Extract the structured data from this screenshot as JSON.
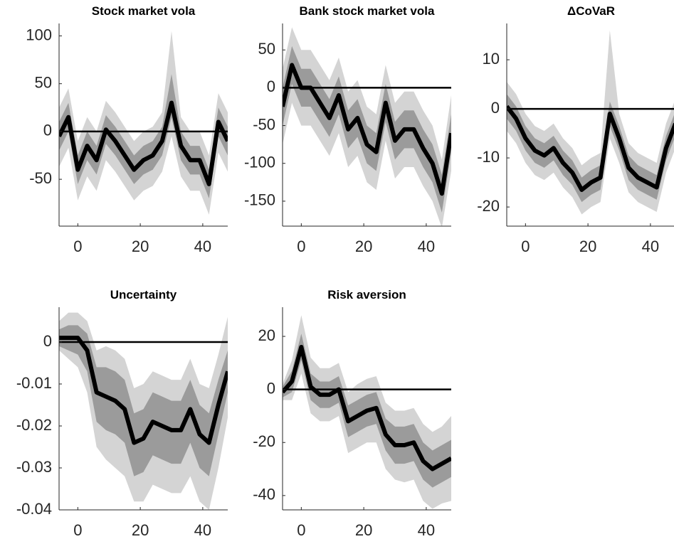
{
  "chart_data": [
    {
      "type": "line",
      "title": "Stock market vola",
      "x": [
        -6,
        -3,
        0,
        3,
        6,
        9,
        12,
        15,
        18,
        21,
        24,
        27,
        30,
        33,
        36,
        39,
        42,
        45,
        48
      ],
      "xlim": [
        -6,
        48
      ],
      "xticks": [
        0,
        20,
        40
      ],
      "ylim": [
        -99,
        113
      ],
      "yticks": [
        -50,
        0,
        50,
        100
      ],
      "hline": 0,
      "bands": [
        {
          "color": "#d4d4d4",
          "lower": [
            -37,
            -17,
            -72,
            -47,
            -62,
            -30,
            -42,
            -57,
            -72,
            -62,
            -57,
            -42,
            -5,
            -47,
            -62,
            -62,
            -87,
            -22,
            -42
          ],
          "upper": [
            25,
            45,
            -10,
            15,
            0,
            32,
            20,
            5,
            -10,
            0,
            5,
            20,
            105,
            15,
            0,
            0,
            -25,
            40,
            20
          ]
        },
        {
          "color": "#9b9b9b",
          "lower": [
            -20,
            0,
            -55,
            -30,
            -45,
            -13,
            -25,
            -40,
            -55,
            -45,
            -40,
            -25,
            15,
            -30,
            -45,
            -45,
            -70,
            -5,
            -25
          ],
          "upper": [
            10,
            30,
            -25,
            0,
            -15,
            17,
            5,
            -10,
            -25,
            -15,
            -10,
            5,
            60,
            0,
            -15,
            -15,
            -40,
            25,
            5
          ]
        }
      ],
      "series": [
        {
          "color": "#000000",
          "values": [
            -5,
            15,
            -40,
            -15,
            -30,
            2,
            -10,
            -25,
            -40,
            -30,
            -25,
            -10,
            30,
            -15,
            -30,
            -30,
            -55,
            10,
            -10
          ]
        }
      ]
    },
    {
      "type": "line",
      "title": "Bank stock market vola",
      "x": [
        -6,
        -3,
        0,
        3,
        6,
        9,
        12,
        15,
        18,
        21,
        24,
        27,
        30,
        33,
        36,
        39,
        42,
        45,
        48
      ],
      "xlim": [
        -6,
        48
      ],
      "xticks": [
        0,
        20,
        40
      ],
      "ylim": [
        -183,
        85
      ],
      "yticks": [
        -150,
        -100,
        -50,
        0,
        50
      ],
      "hline": 0,
      "bands": [
        {
          "color": "#d4d4d4",
          "lower": [
            -75,
            -20,
            -50,
            -50,
            -70,
            -90,
            -60,
            -105,
            -90,
            -125,
            -135,
            -70,
            -120,
            -105,
            -105,
            -130,
            -150,
            -185,
            -110
          ],
          "upper": [
            25,
            80,
            50,
            50,
            30,
            10,
            40,
            -5,
            10,
            -25,
            -35,
            30,
            -20,
            -5,
            -5,
            -30,
            -50,
            -95,
            -10
          ]
        },
        {
          "color": "#9b9b9b",
          "lower": [
            -50,
            5,
            -25,
            -25,
            -45,
            -65,
            -35,
            -80,
            -65,
            -100,
            -110,
            -45,
            -95,
            -80,
            -80,
            -105,
            -125,
            -165,
            -85
          ],
          "upper": [
            0,
            55,
            25,
            25,
            5,
            -15,
            15,
            -30,
            -15,
            -50,
            -60,
            5,
            -45,
            -30,
            -30,
            -55,
            -75,
            -115,
            -35
          ]
        }
      ],
      "series": [
        {
          "color": "#000000",
          "values": [
            -25,
            30,
            0,
            0,
            -20,
            -40,
            -10,
            -55,
            -40,
            -75,
            -85,
            -20,
            -70,
            -55,
            -55,
            -80,
            -100,
            -140,
            -60
          ]
        }
      ]
    },
    {
      "type": "line",
      "title": "ΔCoVaR",
      "x": [
        -6,
        -3,
        0,
        3,
        6,
        9,
        12,
        15,
        18,
        21,
        24,
        27,
        30,
        33,
        36,
        39,
        42,
        45,
        48
      ],
      "xlim": [
        -6,
        48
      ],
      "xticks": [
        0,
        20,
        40
      ],
      "ylim": [
        -23.9,
        17.4
      ],
      "yticks": [
        -20,
        -10,
        0,
        10
      ],
      "hline": 0,
      "bands": [
        {
          "color": "#d4d4d4",
          "lower": [
            -4.5,
            -7,
            -11,
            -13.5,
            -14.5,
            -13,
            -16,
            -18,
            -21.5,
            -20,
            -19,
            -6,
            -11,
            -17,
            -19,
            -20,
            -21,
            -13,
            -8
          ],
          "upper": [
            5.5,
            3,
            -1,
            -3.5,
            -4.5,
            -3,
            -6,
            -8,
            -11.5,
            -10,
            -9,
            16,
            -1,
            -7,
            -9,
            -10,
            -11,
            -3,
            2
          ]
        },
        {
          "color": "#9b9b9b",
          "lower": [
            -2,
            -4.5,
            -8.5,
            -11,
            -12,
            -10.5,
            -13.5,
            -15.5,
            -19,
            -17.5,
            -16.5,
            -3.5,
            -8.5,
            -14.5,
            -16.5,
            -17.5,
            -18.5,
            -10.5,
            -5.5
          ],
          "upper": [
            3,
            0.5,
            -3.5,
            -6,
            -7,
            -5.5,
            -8.5,
            -10.5,
            -14,
            -12.5,
            -11.5,
            1.5,
            -3.5,
            -9.5,
            -11.5,
            -12.5,
            -13.5,
            -5.5,
            -0.5
          ]
        }
      ],
      "series": [
        {
          "color": "#000000",
          "values": [
            0.5,
            -2,
            -6,
            -8.5,
            -9.5,
            -8,
            -11,
            -13,
            -16.5,
            -15,
            -14,
            -1,
            -6,
            -12,
            -14,
            -15,
            -16,
            -8,
            -3
          ]
        }
      ]
    },
    {
      "type": "line",
      "title": "Uncertainty",
      "x": [
        -6,
        -3,
        0,
        3,
        6,
        9,
        12,
        15,
        18,
        21,
        24,
        27,
        30,
        33,
        36,
        39,
        42,
        45,
        48
      ],
      "xlim": [
        -6,
        48
      ],
      "xticks": [
        0,
        20,
        40
      ],
      "ylim": [
        -0.04,
        0.0083
      ],
      "yticks": [
        -0.04,
        -0.03,
        -0.02,
        -0.01,
        0
      ],
      "hline": 0,
      "bands": [
        {
          "color": "#d4d4d4",
          "lower": [
            -0.002,
            -0.004,
            -0.006,
            -0.012,
            -0.025,
            -0.028,
            -0.03,
            -0.032,
            -0.038,
            -0.038,
            -0.034,
            -0.035,
            -0.036,
            -0.036,
            -0.032,
            -0.038,
            -0.04,
            -0.03,
            -0.018
          ],
          "upper": [
            0.005,
            0.007,
            0.007,
            0.005,
            -0.002,
            -0.001,
            -0.002,
            -0.004,
            -0.011,
            -0.01,
            -0.007,
            -0.008,
            -0.009,
            -0.009,
            -0.004,
            -0.01,
            -0.011,
            -0.003,
            0.006
          ]
        },
        {
          "color": "#9b9b9b",
          "lower": [
            -0.001,
            -0.002,
            -0.003,
            -0.007,
            -0.019,
            -0.021,
            -0.022,
            -0.024,
            -0.032,
            -0.031,
            -0.027,
            -0.028,
            -0.029,
            -0.029,
            -0.024,
            -0.03,
            -0.032,
            -0.022,
            -0.012
          ],
          "upper": [
            0.003,
            0.004,
            0.004,
            0.002,
            -0.006,
            -0.006,
            -0.007,
            -0.009,
            -0.017,
            -0.016,
            -0.012,
            -0.013,
            -0.014,
            -0.014,
            -0.009,
            -0.015,
            -0.017,
            -0.009,
            -0.002
          ]
        }
      ],
      "series": [
        {
          "color": "#000000",
          "values": [
            0.001,
            0.001,
            0.001,
            -0.002,
            -0.012,
            -0.013,
            -0.014,
            -0.016,
            -0.024,
            -0.023,
            -0.019,
            -0.02,
            -0.021,
            -0.021,
            -0.016,
            -0.022,
            -0.024,
            -0.015,
            -0.007
          ]
        }
      ]
    },
    {
      "type": "line",
      "title": "Risk aversion",
      "x": [
        -6,
        -3,
        0,
        3,
        6,
        9,
        12,
        15,
        18,
        21,
        24,
        27,
        30,
        33,
        36,
        39,
        42,
        45,
        48
      ],
      "xlim": [
        -6,
        48
      ],
      "xticks": [
        0,
        20,
        40
      ],
      "ylim": [
        -45.4,
        31
      ],
      "yticks": [
        -40,
        -20,
        0,
        20
      ],
      "hline": 0,
      "bands": [
        {
          "color": "#d4d4d4",
          "lower": [
            -4,
            -4,
            6,
            -9,
            -12,
            -12,
            -10,
            -24,
            -22,
            -20,
            -20,
            -30,
            -34,
            -35,
            -34,
            -42,
            -45,
            -43,
            -42
          ],
          "upper": [
            2,
            11,
            28,
            12,
            8,
            8,
            10,
            -1,
            2,
            4,
            5,
            -5,
            -8,
            -8,
            -7,
            -13,
            -16,
            -14,
            -10
          ]
        },
        {
          "color": "#9b9b9b",
          "lower": [
            -3,
            -1,
            11,
            -4,
            -7,
            -7,
            -5,
            -18,
            -16,
            -14,
            -13,
            -23,
            -28,
            -28,
            -27,
            -34,
            -37,
            -35,
            -33
          ],
          "upper": [
            1,
            7,
            21,
            6,
            3,
            3,
            5,
            -6,
            -4,
            -2,
            -1,
            -11,
            -14,
            -14,
            -13,
            -20,
            -23,
            -21,
            -19
          ]
        }
      ],
      "series": [
        {
          "color": "#000000",
          "values": [
            -1,
            3,
            16,
            1,
            -2,
            -2,
            0,
            -12,
            -10,
            -8,
            -7,
            -17,
            -21,
            -21,
            -20,
            -27,
            -30,
            -28,
            -26
          ]
        }
      ]
    }
  ]
}
